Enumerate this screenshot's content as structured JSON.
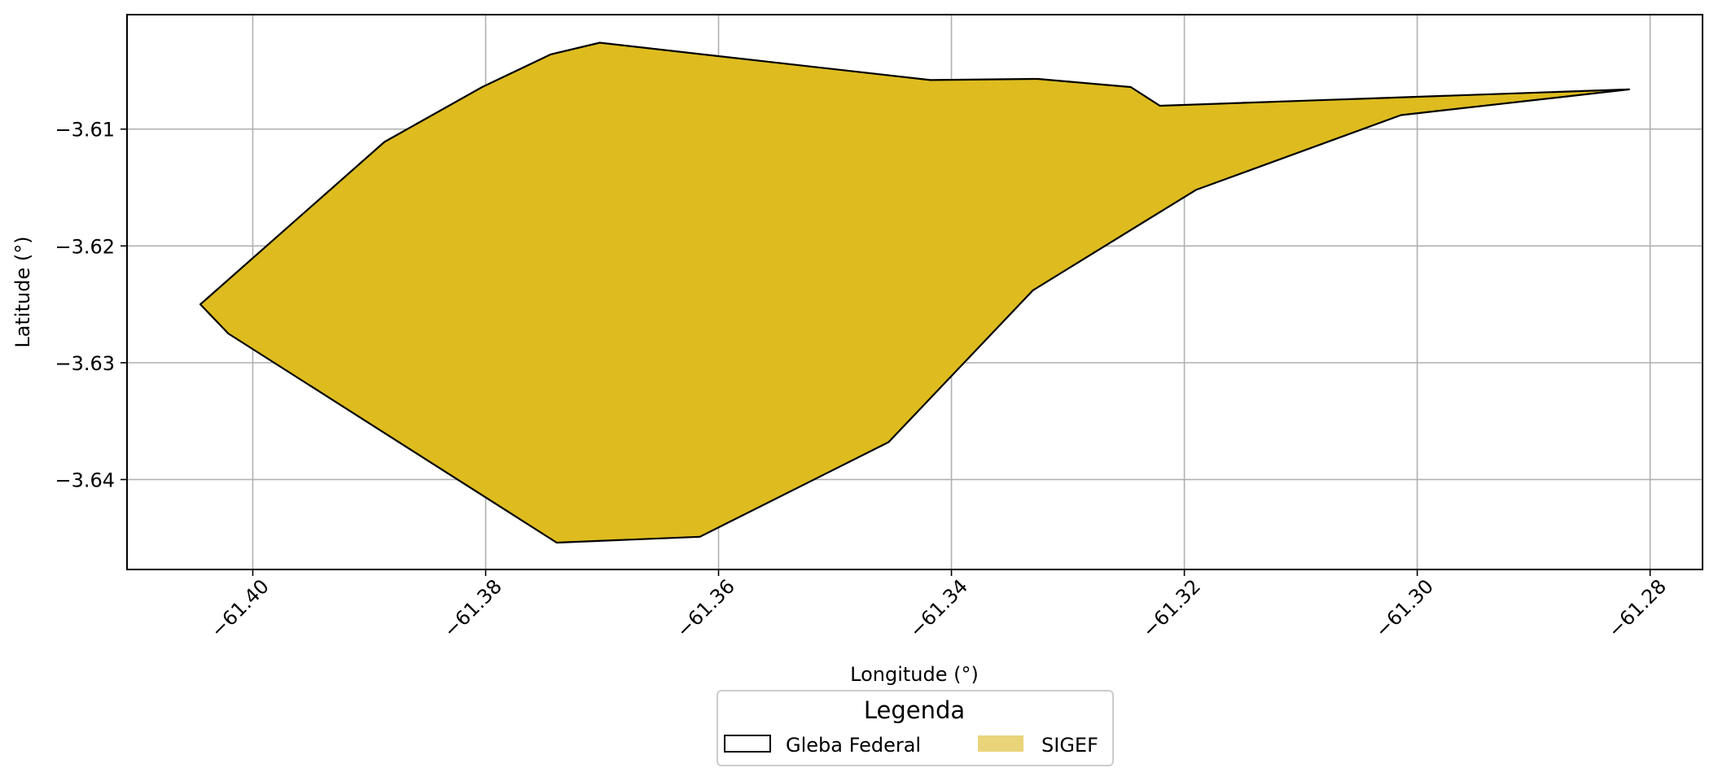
{
  "chart_data": {
    "type": "map",
    "title": "",
    "xlabel": "Longitude (°)",
    "ylabel": "Latitude (°)",
    "xlim": [
      -61.4108,
      -61.2755
    ],
    "ylim": [
      -3.6477,
      -3.6002
    ],
    "xticks": [
      -61.4,
      -61.38,
      -61.36,
      -61.34,
      -61.32,
      -61.3,
      -61.28
    ],
    "xtick_labels": [
      "−61.40",
      "−61.38",
      "−61.36",
      "−61.34",
      "−61.32",
      "−61.30",
      "−61.28"
    ],
    "yticks": [
      -3.61,
      -3.62,
      -3.63,
      -3.64
    ],
    "ytick_labels": [
      "−3.61",
      "−3.62",
      "−3.63",
      "−3.64"
    ],
    "xtick_rotation_deg": 45,
    "grid": true,
    "legend": {
      "title": "Legenda",
      "location": "bottom-center",
      "entries": [
        {
          "label": "Gleba Federal",
          "style": "outline",
          "edgecolor": "#000000",
          "facecolor": "none"
        },
        {
          "label": "SIGEF",
          "style": "fill",
          "facecolor": "#ead47a",
          "edgecolor": "none"
        }
      ]
    },
    "layers": [
      {
        "name": "Gleba Federal",
        "type": "polygon",
        "facecolor": "#debc1f",
        "edgecolor": "#000000",
        "coordinates": [
          [
            -61.3803,
            -3.6064
          ],
          [
            -61.3744,
            -3.6036
          ],
          [
            -61.3702,
            -3.6026
          ],
          [
            -61.3418,
            -3.6058
          ],
          [
            -61.3326,
            -3.6057
          ],
          [
            -61.3246,
            -3.6064
          ],
          [
            -61.3221,
            -3.608
          ],
          [
            -61.2818,
            -3.6066
          ],
          [
            -61.3014,
            -3.6088
          ],
          [
            -61.319,
            -3.6152
          ],
          [
            -61.333,
            -3.6238
          ],
          [
            -61.3454,
            -3.6368
          ],
          [
            -61.3616,
            -3.6449
          ],
          [
            -61.3739,
            -3.6454
          ],
          [
            -61.4021,
            -3.6275
          ],
          [
            -61.4045,
            -3.625
          ],
          [
            -61.3887,
            -3.6111
          ]
        ]
      }
    ]
  }
}
